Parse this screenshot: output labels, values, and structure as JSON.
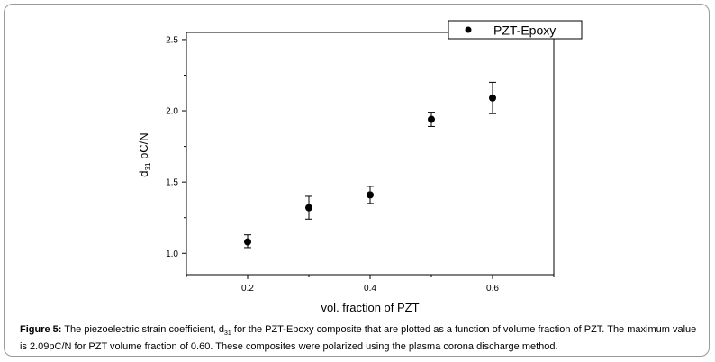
{
  "chart_data": {
    "type": "scatter",
    "xlabel": "vol. fraction of PZT",
    "ylabel_main": "d",
    "ylabel_sub": "31",
    "ylabel_rest": " pC/N",
    "xlim": [
      0.1,
      0.7
    ],
    "ylim": [
      0.85,
      2.55
    ],
    "xticks": [
      0.2,
      0.4,
      0.6
    ],
    "xminorticks": [
      0.1,
      0.3,
      0.5,
      0.7
    ],
    "yticks": [
      1.0,
      1.5,
      2.0,
      2.5
    ],
    "yminorticks": [
      1.25,
      1.75,
      2.25
    ],
    "legend_position": "top-right",
    "series": [
      {
        "name": "PZT-Epoxy",
        "x": [
          0.2,
          0.3,
          0.4,
          0.5,
          0.6
        ],
        "y": [
          1.08,
          1.32,
          1.41,
          1.94,
          2.09
        ],
        "err_low": [
          1.04,
          1.24,
          1.35,
          1.89,
          1.98
        ],
        "err_high": [
          1.13,
          1.4,
          1.47,
          1.99,
          2.2
        ]
      }
    ]
  },
  "caption": {
    "label": "Figure 5:",
    "text_before": " The piezoelectric strain coefficient, d",
    "text_sub": "31",
    "text_after": " for the PZT-Epoxy composite that are plotted as a function of volume fraction of PZT. The maximum value is 2.09pC/N for PZT volume fraction of 0.60. These composites were polarized using the plasma corona discharge method."
  }
}
